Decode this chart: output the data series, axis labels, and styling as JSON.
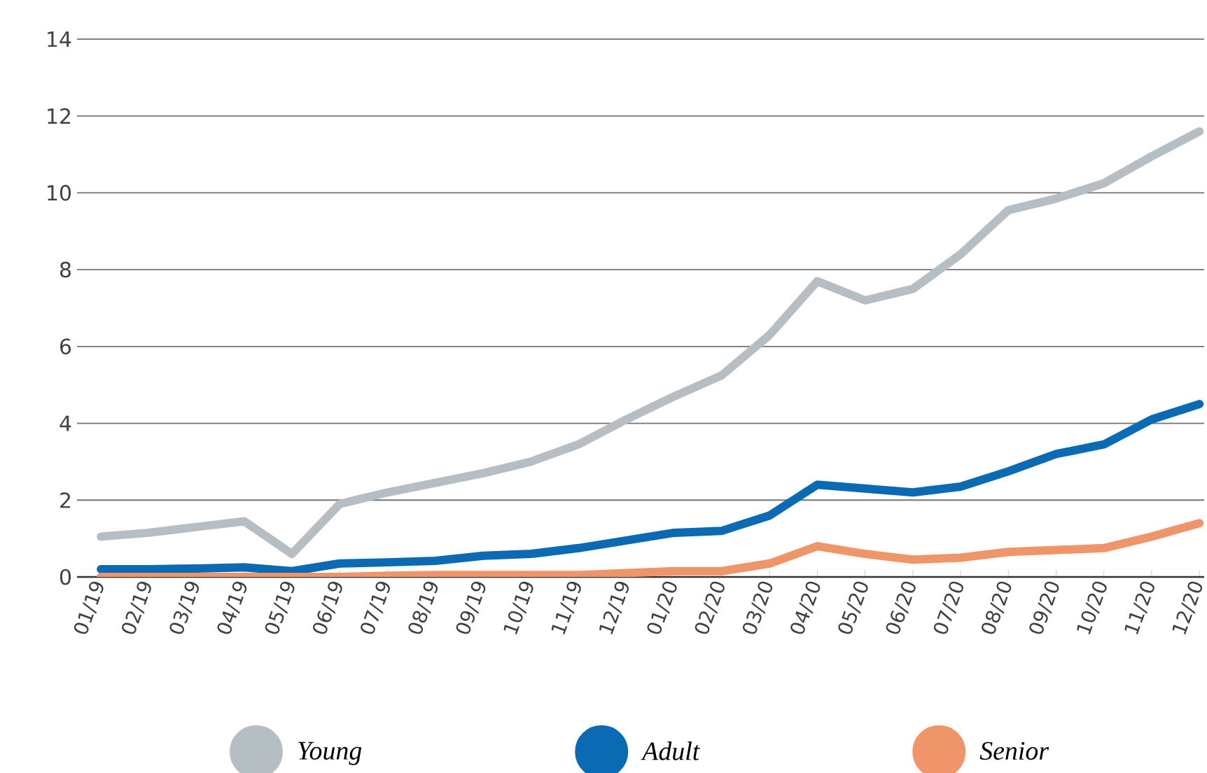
{
  "chart_data": {
    "type": "line",
    "categories": [
      "01/19",
      "02/19",
      "03/19",
      "04/19",
      "05/19",
      "06/19",
      "07/19",
      "08/19",
      "09/19",
      "10/19",
      "11/19",
      "12/19",
      "01/20",
      "02/20",
      "03/20",
      "04/20",
      "05/20",
      "06/20",
      "07/20",
      "08/20",
      "09/20",
      "10/20",
      "11/20",
      "12/20"
    ],
    "series": [
      {
        "name": "Young",
        "color": "#b5bfc3",
        "values": [
          1.05,
          1.15,
          1.3,
          1.45,
          0.6,
          1.9,
          2.2,
          2.45,
          2.7,
          3.0,
          3.45,
          4.1,
          4.7,
          5.25,
          6.3,
          7.7,
          7.2,
          7.5,
          8.4,
          9.55,
          9.85,
          10.25,
          10.95,
          11.6
        ]
      },
      {
        "name": "Adult",
        "color": "#0a6ab3",
        "values": [
          0.2,
          0.2,
          0.22,
          0.25,
          0.15,
          0.35,
          0.38,
          0.42,
          0.55,
          0.6,
          0.75,
          0.95,
          1.15,
          1.2,
          1.6,
          2.4,
          2.3,
          2.2,
          2.35,
          2.75,
          3.2,
          3.45,
          4.1,
          4.5
        ]
      },
      {
        "name": "Senior",
        "color": "#f0956a",
        "values": [
          0,
          0,
          0,
          0,
          0,
          0,
          0.03,
          0.05,
          0.05,
          0.05,
          0.05,
          0.1,
          0.15,
          0.15,
          0.35,
          0.8,
          0.6,
          0.45,
          0.5,
          0.65,
          0.7,
          0.75,
          1.05,
          1.4
        ]
      }
    ],
    "ylim": [
      0,
      14
    ],
    "yticks": [
      0,
      2,
      4,
      6,
      8,
      10,
      12,
      14
    ],
    "grid": "y",
    "legend": "bottom",
    "marker": "none",
    "line_style": "solid"
  }
}
